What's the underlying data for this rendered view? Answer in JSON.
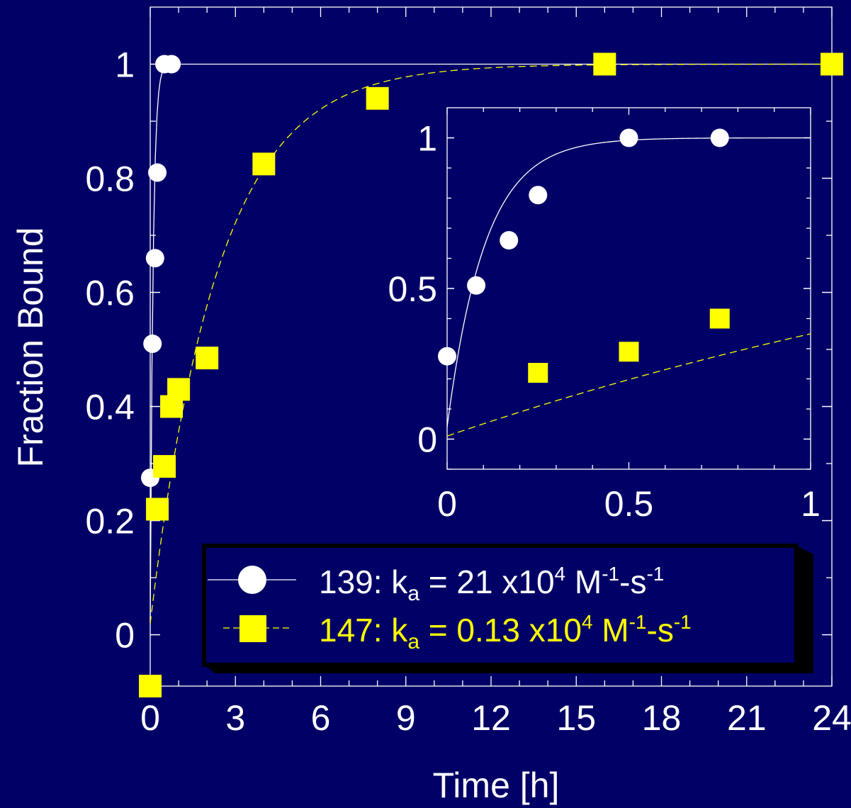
{
  "chart_data": [
    {
      "type": "scatter",
      "panel": "main",
      "xlabel": "Time [h]",
      "ylabel": "Fraction Bound",
      "xlim": [
        0,
        24
      ],
      "ylim": [
        -0.09,
        1.1
      ],
      "x_ticks": [
        "0",
        "3",
        "6",
        "9",
        "12",
        "15",
        "18",
        "21",
        "24"
      ],
      "y_ticks": [
        "0",
        "0.2",
        "0.4",
        "0.6",
        "0.8",
        "1"
      ],
      "series": [
        {
          "name": "139",
          "color": "#ffffff",
          "marker": "circle",
          "x": [
            0.0,
            0.08,
            0.17,
            0.25,
            0.5,
            0.75
          ],
          "y": [
            0.275,
            0.51,
            0.66,
            0.81,
            1.0,
            1.0
          ],
          "fit": "single-exponential",
          "k_fit_per_h": 10.0
        },
        {
          "name": "147",
          "color": "#ffff00",
          "marker": "square",
          "x": [
            0.0,
            0.25,
            0.5,
            0.75,
            1.0,
            2.0,
            4.0,
            8.0,
            16.0,
            24.0
          ],
          "y": [
            -0.09,
            0.22,
            0.295,
            0.4,
            0.43,
            0.485,
            0.825,
            0.94,
            1.0,
            1.0
          ],
          "fit": "single-exponential",
          "k_fit_per_h": 0.42
        }
      ],
      "legend": {
        "placement": "bottom-right",
        "entries": [
          {
            "prefix": "139:  k",
            "sub": "a",
            "mid": " = 21 x10",
            "sup1": "4",
            "unit1": " M",
            "sup2": "-1",
            "unit2": "-s",
            "sup3": "-1",
            "color": "#ffffff"
          },
          {
            "prefix": "147:  k",
            "sub": "a",
            "mid": " = 0.13 x10",
            "sup1": "4",
            "unit1": " M",
            "sup2": "-1",
            "unit2": "-s",
            "sup3": "-1",
            "color": "#ffff00"
          }
        ]
      }
    },
    {
      "type": "scatter",
      "panel": "inset",
      "placement": "top-right",
      "xlim": [
        0,
        1
      ],
      "ylim": [
        -0.1,
        1.1
      ],
      "x_ticks": [
        "0",
        "0.5",
        "1"
      ],
      "y_ticks": [
        "0",
        "0.5",
        "1"
      ],
      "series": [
        {
          "name": "139",
          "color": "#ffffff",
          "marker": "circle",
          "x": [
            0.0,
            0.08,
            0.17,
            0.25,
            0.5,
            0.75
          ],
          "y": [
            0.275,
            0.51,
            0.66,
            0.81,
            1.0,
            1.0
          ]
        },
        {
          "name": "147",
          "color": "#ffff00",
          "marker": "square",
          "x": [
            0.25,
            0.5,
            0.75
          ],
          "y": [
            0.22,
            0.29,
            0.4
          ]
        }
      ]
    }
  ]
}
